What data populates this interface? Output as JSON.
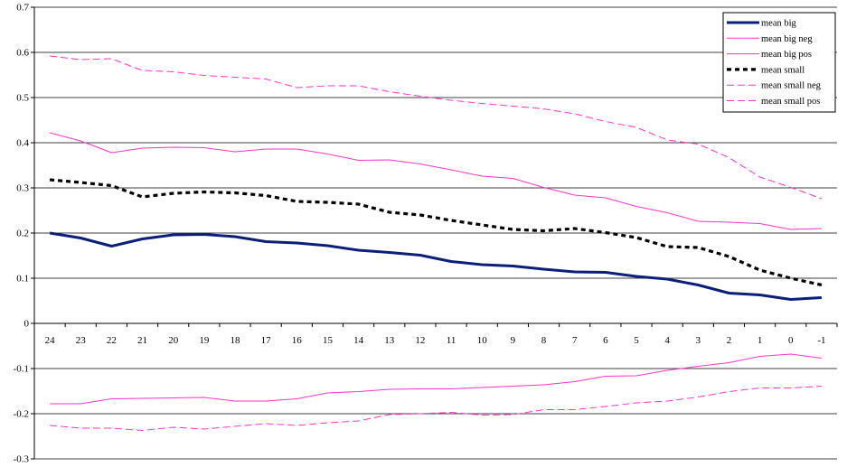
{
  "chart_data": {
    "type": "line",
    "title": "",
    "xlabel": "",
    "ylabel": "",
    "x": [
      24,
      23,
      22,
      21,
      20,
      19,
      18,
      17,
      16,
      15,
      14,
      13,
      12,
      11,
      10,
      9,
      8,
      7,
      6,
      5,
      4,
      3,
      2,
      1,
      0,
      -1
    ],
    "x_tick_labels": [
      "24",
      "23",
      "22",
      "21",
      "20",
      "19",
      "18",
      "17",
      "16",
      "15",
      "14",
      "13",
      "12",
      "11",
      "10",
      "9",
      "8",
      "7",
      "6",
      "5",
      "4",
      "3",
      "2",
      "1",
      "0",
      "-1"
    ],
    "ylim": [
      -0.3,
      0.7
    ],
    "y_ticks": [
      -0.3,
      -0.2,
      -0.1,
      0,
      0.1,
      0.2,
      0.3,
      0.4,
      0.5,
      0.6,
      0.7
    ],
    "y_tick_labels": [
      "-0.3",
      "-0.2",
      "-0.1",
      "0",
      "0.1",
      "0.2",
      "0.3",
      "0.4",
      "0.5",
      "0.6",
      "0.7"
    ],
    "grid": "horizontal",
    "legend_position": "top-right",
    "series": [
      {
        "name": "mean big",
        "color": "#0b1f7a",
        "style": "solid-thick",
        "values": [
          0.2,
          0.189,
          0.171,
          0.187,
          0.196,
          0.197,
          0.192,
          0.181,
          0.178,
          0.172,
          0.162,
          0.157,
          0.151,
          0.137,
          0.13,
          0.127,
          0.12,
          0.114,
          0.113,
          0.104,
          0.098,
          0.085,
          0.067,
          0.063,
          0.053,
          0.057
        ]
      },
      {
        "name": "mean big neg",
        "color": "#ff33cc",
        "style": "solid",
        "values": [
          -0.178,
          -0.178,
          -0.167,
          -0.166,
          -0.165,
          -0.164,
          -0.172,
          -0.172,
          -0.167,
          -0.154,
          -0.151,
          -0.146,
          -0.145,
          -0.145,
          -0.142,
          -0.139,
          -0.136,
          -0.129,
          -0.117,
          -0.116,
          -0.104,
          -0.095,
          -0.087,
          -0.073,
          -0.068,
          -0.077
        ]
      },
      {
        "name": "mean big pos",
        "color": "#ff33cc",
        "style": "solid",
        "values": [
          0.422,
          0.404,
          0.378,
          0.388,
          0.39,
          0.389,
          0.38,
          0.386,
          0.386,
          0.375,
          0.361,
          0.362,
          0.353,
          0.34,
          0.326,
          0.321,
          0.301,
          0.284,
          0.278,
          0.259,
          0.245,
          0.226,
          0.224,
          0.221,
          0.208,
          0.21
        ]
      },
      {
        "name": "mean small",
        "color": "#000000",
        "style": "dotted-thick",
        "values": [
          0.318,
          0.312,
          0.305,
          0.28,
          0.288,
          0.291,
          0.289,
          0.283,
          0.27,
          0.268,
          0.264,
          0.246,
          0.24,
          0.228,
          0.218,
          0.208,
          0.205,
          0.21,
          0.201,
          0.19,
          0.17,
          0.168,
          0.148,
          0.118,
          0.1,
          0.085
        ]
      },
      {
        "name": "mean small neg",
        "color": "#ff33cc",
        "style": "dashed",
        "values": [
          -0.226,
          -0.232,
          -0.232,
          -0.237,
          -0.23,
          -0.234,
          -0.228,
          -0.222,
          -0.226,
          -0.22,
          -0.216,
          -0.202,
          -0.2,
          -0.197,
          -0.203,
          -0.202,
          -0.191,
          -0.191,
          -0.184,
          -0.176,
          -0.172,
          -0.163,
          -0.151,
          -0.143,
          -0.143,
          -0.139
        ]
      },
      {
        "name": "mean small pos",
        "color": "#ff33cc",
        "style": "dashed",
        "values": [
          0.592,
          0.584,
          0.586,
          0.56,
          0.557,
          0.549,
          0.545,
          0.541,
          0.522,
          0.526,
          0.526,
          0.513,
          0.503,
          0.494,
          0.487,
          0.481,
          0.475,
          0.464,
          0.447,
          0.434,
          0.406,
          0.397,
          0.367,
          0.324,
          0.301,
          0.276
        ]
      }
    ]
  }
}
